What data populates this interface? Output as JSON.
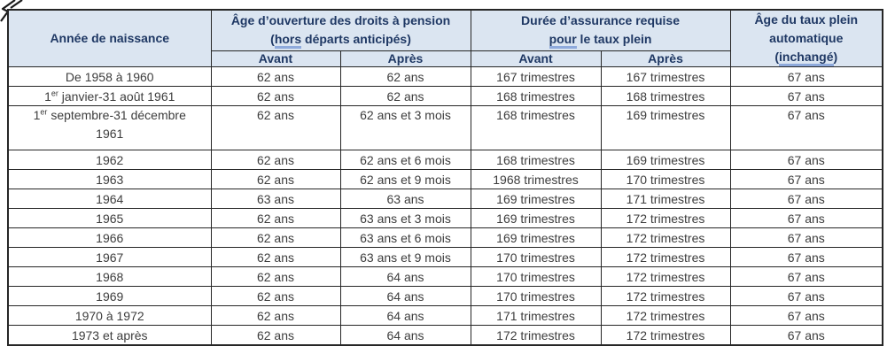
{
  "colors": {
    "header_bg": "#dbe5f1",
    "header_text": "#1f3864",
    "body_text": "#3d3d3d",
    "border": "#262626",
    "word_underline": "#8faadc"
  },
  "icons": {
    "corner": "cursor-arrow-icon"
  },
  "table": {
    "headers": {
      "birth_year": "Année de naissance",
      "age_group_line1": "Âge d’ouverture des droits à pension",
      "age_group_open": "(",
      "age_group_underlined": "hors",
      "age_group_rest": " départs anticipés)",
      "duration_line1": "Durée d’assurance requise",
      "duration_underlined": "pour",
      "duration_rest": " le taux plein",
      "auto_line1": "Âge du taux plein",
      "auto_line2": "automatique",
      "auto_open": "(",
      "auto_underlined": "inchangé",
      "auto_close": ")",
      "sub_before": "Avant",
      "sub_after": "Après"
    },
    "rows": [
      {
        "birth_pre": "De 1958 à 1960",
        "birth_sup": "",
        "birth_post": "",
        "birth_line2": "",
        "age_avant": "62 ans",
        "age_apres": "62 ans",
        "duree_avant": "167 trimestres",
        "duree_apres": "167 trimestres",
        "taux_plein": "67 ans"
      },
      {
        "birth_pre": "1",
        "birth_sup": "er",
        "birth_post": " janvier-31 août 1961",
        "birth_line2": "",
        "age_avant": "62 ans",
        "age_apres": "62 ans",
        "duree_avant": "168 trimestres",
        "duree_apres": "168 trimestres",
        "taux_plein": "67 ans"
      },
      {
        "birth_pre": "1",
        "birth_sup": "er",
        "birth_post": " septembre-31 décembre",
        "birth_line2": "1961",
        "age_avant": "62 ans",
        "age_apres": "62 ans et 3 mois",
        "duree_avant": "168 trimestres",
        "duree_apres": "169 trimestres",
        "taux_plein": "67 ans"
      },
      {
        "birth_pre": "1962",
        "birth_sup": "",
        "birth_post": "",
        "birth_line2": "",
        "age_avant": "62 ans",
        "age_apres": "62 ans et 6 mois",
        "duree_avant": "168 trimestres",
        "duree_apres": "169 trimestres",
        "taux_plein": "67 ans"
      },
      {
        "birth_pre": "1963",
        "birth_sup": "",
        "birth_post": "",
        "birth_line2": "",
        "age_avant": "62 ans",
        "age_apres": "62 ans et 9 mois",
        "duree_avant": "1968 trimestres",
        "duree_apres": "170 trimestres",
        "taux_plein": "67 ans"
      },
      {
        "birth_pre": "1964",
        "birth_sup": "",
        "birth_post": "",
        "birth_line2": "",
        "age_avant": "63 ans",
        "age_apres": "63 ans",
        "duree_avant": "169 trimestres",
        "duree_apres": "171 trimestres",
        "taux_plein": "67 ans"
      },
      {
        "birth_pre": "1965",
        "birth_sup": "",
        "birth_post": "",
        "birth_line2": "",
        "age_avant": "62 ans",
        "age_apres": "63 ans et 3 mois",
        "duree_avant": "169 trimestres",
        "duree_apres": "172 trimestres",
        "taux_plein": "67 ans"
      },
      {
        "birth_pre": "1966",
        "birth_sup": "",
        "birth_post": "",
        "birth_line2": "",
        "age_avant": "62 ans",
        "age_apres": "63 ans et 6 mois",
        "duree_avant": "169 trimestres",
        "duree_apres": "172 trimestres",
        "taux_plein": "67 ans"
      },
      {
        "birth_pre": "1967",
        "birth_sup": "",
        "birth_post": "",
        "birth_line2": "",
        "age_avant": "62 ans",
        "age_apres": "63 ans et 9 mois",
        "duree_avant": "170 trimestres",
        "duree_apres": "172 trimestres",
        "taux_plein": "67 ans"
      },
      {
        "birth_pre": "1968",
        "birth_sup": "",
        "birth_post": "",
        "birth_line2": "",
        "age_avant": "62 ans",
        "age_apres": "64 ans",
        "duree_avant": "170 trimestres",
        "duree_apres": "172 trimestres",
        "taux_plein": "67 ans"
      },
      {
        "birth_pre": "1969",
        "birth_sup": "",
        "birth_post": "",
        "birth_line2": "",
        "age_avant": "62 ans",
        "age_apres": "64 ans",
        "duree_avant": "170 trimestres",
        "duree_apres": "172 trimestres",
        "taux_plein": "67 ans"
      },
      {
        "birth_pre": "1970 à 1972",
        "birth_sup": "",
        "birth_post": "",
        "birth_line2": "",
        "age_avant": "62 ans",
        "age_apres": "64 ans",
        "duree_avant": "171 trimestres",
        "duree_apres": "172 trimestres",
        "taux_plein": "67 ans"
      },
      {
        "birth_pre": "1973 et après",
        "birth_sup": "",
        "birth_post": "",
        "birth_line2": "",
        "age_avant": "62 ans",
        "age_apres": "64 ans",
        "duree_avant": "172 trimestres",
        "duree_apres": "172 trimestres",
        "taux_plein": "67 ans"
      }
    ]
  }
}
